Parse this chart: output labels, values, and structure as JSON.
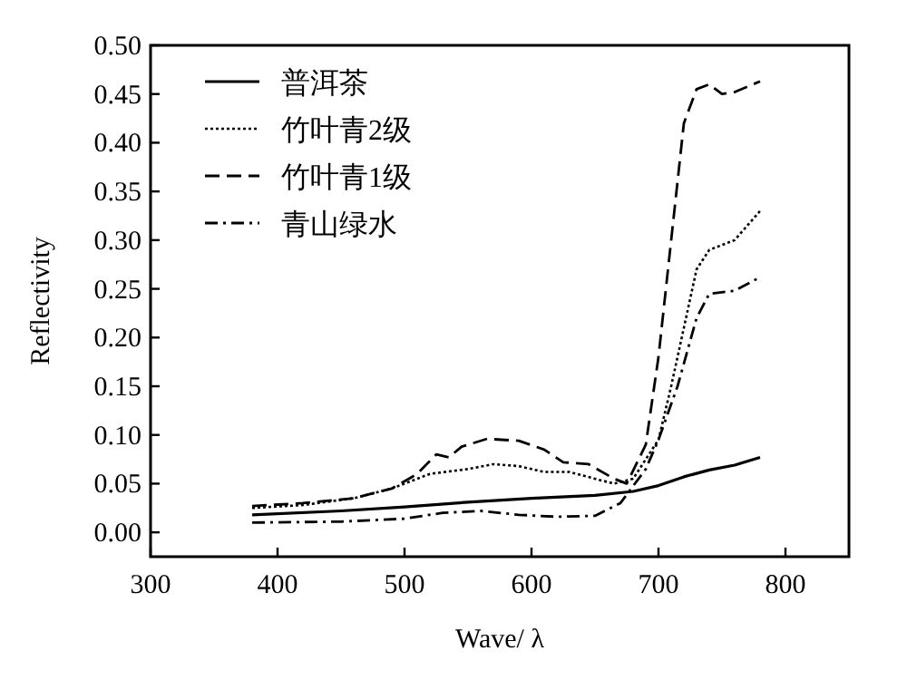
{
  "chart_data": {
    "type": "line",
    "xlabel": "Wave/ λ",
    "ylabel": "Reflectivity",
    "xlim": [
      300,
      850
    ],
    "ylim": [
      -0.025,
      0.5
    ],
    "xticks": [
      300,
      400,
      500,
      600,
      700,
      800
    ],
    "yticks": [
      {
        "value": 0,
        "label": "0.00"
      },
      {
        "value": 0.05,
        "label": "0.05"
      },
      {
        "value": 0.1,
        "label": "0.10"
      },
      {
        "value": 0.15,
        "label": "0.15"
      },
      {
        "value": 0.2,
        "label": "0.20"
      },
      {
        "value": 0.25,
        "label": "0.25"
      },
      {
        "value": 0.3,
        "label": "0.30"
      },
      {
        "value": 0.35,
        "label": "0.35"
      },
      {
        "value": 0.4,
        "label": "0.40"
      },
      {
        "value": 0.45,
        "label": "0.45"
      },
      {
        "value": 0.5,
        "label": "0.50"
      }
    ],
    "legend": "top left",
    "grid": false,
    "series": [
      {
        "name": "普洱茶",
        "color": "#000000",
        "line_style": "solid",
        "x": [
          380,
          450,
          500,
          550,
          600,
          650,
          680,
          700,
          720,
          740,
          760,
          780
        ],
        "values": [
          0.018,
          0.022,
          0.026,
          0.031,
          0.035,
          0.038,
          0.042,
          0.048,
          0.057,
          0.064,
          0.069,
          0.077
        ]
      },
      {
        "name": "竹叶青2级",
        "color": "#000000",
        "line_style": "dotted",
        "x": [
          380,
          420,
          460,
          490,
          520,
          550,
          570,
          590,
          610,
          630,
          650,
          665,
          680,
          700,
          710,
          720,
          730,
          740,
          760,
          780
        ],
        "values": [
          0.025,
          0.028,
          0.035,
          0.045,
          0.06,
          0.065,
          0.07,
          0.068,
          0.062,
          0.062,
          0.055,
          0.05,
          0.055,
          0.095,
          0.15,
          0.21,
          0.27,
          0.29,
          0.3,
          0.33
        ]
      },
      {
        "name": "竹叶青1级",
        "color": "#000000",
        "line_style": "dashed",
        "x": [
          380,
          420,
          460,
          490,
          510,
          525,
          535,
          545,
          565,
          590,
          610,
          625,
          645,
          665,
          675,
          690,
          700,
          710,
          720,
          730,
          740,
          750,
          760,
          780
        ],
        "values": [
          0.027,
          0.03,
          0.035,
          0.045,
          0.06,
          0.08,
          0.077,
          0.088,
          0.096,
          0.094,
          0.085,
          0.072,
          0.07,
          0.055,
          0.05,
          0.09,
          0.18,
          0.3,
          0.42,
          0.455,
          0.46,
          0.45,
          0.452,
          0.463
        ]
      },
      {
        "name": "青山绿水",
        "color": "#000000",
        "line_style": "dashdot",
        "x": [
          380,
          450,
          500,
          530,
          560,
          590,
          620,
          650,
          670,
          690,
          700,
          715,
          730,
          740,
          760,
          780
        ],
        "values": [
          0.01,
          0.011,
          0.014,
          0.02,
          0.022,
          0.018,
          0.016,
          0.017,
          0.03,
          0.065,
          0.095,
          0.15,
          0.22,
          0.245,
          0.248,
          0.262
        ]
      }
    ]
  }
}
